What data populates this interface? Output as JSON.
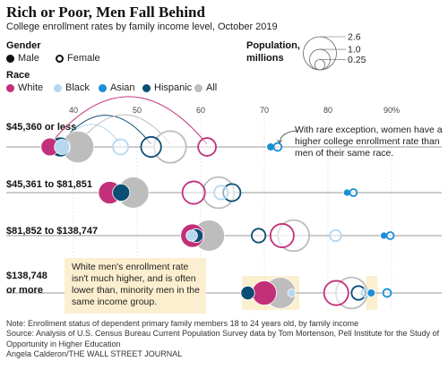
{
  "title": "Rich or Poor, Men Fall Behind",
  "subtitle": "College enrollment rates by family income level, October 2019",
  "legend": {
    "gender_title": "Gender",
    "gender_items": [
      {
        "label": "Male",
        "style": "filled"
      },
      {
        "label": "Female",
        "style": "open"
      }
    ],
    "race_title": "Race",
    "race_items": [
      {
        "label": "White",
        "color": "#c2307a"
      },
      {
        "label": "Black",
        "color": "#b5d7ef"
      },
      {
        "label": "Asian",
        "color": "#1b8fd6"
      },
      {
        "label": "Hispanic",
        "color": "#0c4e73"
      },
      {
        "label": "All",
        "color": "#bdbdbd"
      }
    ],
    "size_title_1": "Population,",
    "size_title_2": "millions",
    "size_items": [
      "2.6",
      "1.0",
      "0.25"
    ]
  },
  "chart_data": {
    "type": "scatter",
    "x_unit": "%",
    "xlim": [
      27,
      93
    ],
    "x_ticks": [
      40,
      50,
      60,
      70,
      80,
      90
    ],
    "x_tick_labels": [
      "40",
      "50",
      "60",
      "70",
      "80",
      "90%"
    ],
    "size_scale_millions": [
      2.6,
      1.0,
      0.25
    ],
    "categories": [
      "$45,360 or less",
      "$45,361 to $81,851",
      "$81,852 to $138,747",
      "$138,748 or more"
    ],
    "category_labels": [
      [
        "$45,360 or less"
      ],
      [
        "$45,361 to $81,851"
      ],
      [
        "$81,852 to $138,747"
      ],
      [
        "$138,748",
        "or more"
      ]
    ],
    "points": [
      {
        "row": 0,
        "race": "White",
        "gender": "Male",
        "x": 36.3,
        "pop": 0.75
      },
      {
        "row": 0,
        "race": "Hispanic",
        "gender": "Male",
        "x": 37.9,
        "pop": 0.95
      },
      {
        "row": 0,
        "race": "Black",
        "gender": "Male",
        "x": 38.2,
        "pop": 0.55
      },
      {
        "row": 0,
        "race": "All",
        "gender": "Male",
        "x": 40.7,
        "pop": 2.4
      },
      {
        "row": 0,
        "race": "Black",
        "gender": "Female",
        "x": 47.4,
        "pop": 0.55
      },
      {
        "row": 0,
        "race": "Hispanic",
        "gender": "Female",
        "x": 52.2,
        "pop": 0.95
      },
      {
        "row": 0,
        "race": "All",
        "gender": "Female",
        "x": 55.2,
        "pop": 2.4
      },
      {
        "row": 0,
        "race": "White",
        "gender": "Female",
        "x": 61.0,
        "pop": 0.75
      },
      {
        "row": 0,
        "race": "Asian",
        "gender": "Male",
        "x": 71.0,
        "pop": 0.15
      },
      {
        "row": 0,
        "race": "Asian",
        "gender": "Female",
        "x": 72.1,
        "pop": 0.15
      },
      {
        "row": 1,
        "race": "White",
        "gender": "Male",
        "x": 45.7,
        "pop": 1.2
      },
      {
        "row": 1,
        "race": "Hispanic",
        "gender": "Male",
        "x": 47.5,
        "pop": 0.7
      },
      {
        "row": 1,
        "race": "All",
        "gender": "Male",
        "x": 49.4,
        "pop": 2.3
      },
      {
        "row": 1,
        "race": "White",
        "gender": "Female",
        "x": 58.9,
        "pop": 1.2
      },
      {
        "row": 1,
        "race": "All",
        "gender": "Female",
        "x": 62.8,
        "pop": 2.3
      },
      {
        "row": 1,
        "race": "Black",
        "gender": "Female",
        "x": 63.2,
        "pop": 0.45
      },
      {
        "row": 1,
        "race": "Hispanic",
        "gender": "Female",
        "x": 64.9,
        "pop": 0.7
      },
      {
        "row": 1,
        "race": "Asian",
        "gender": "Male",
        "x": 83.0,
        "pop": 0.12
      },
      {
        "row": 1,
        "race": "Asian",
        "gender": "Female",
        "x": 84.0,
        "pop": 0.12
      },
      {
        "row": 2,
        "race": "Black",
        "gender": "Male",
        "x": 58.6,
        "pop": 0.3
      },
      {
        "row": 2,
        "race": "White",
        "gender": "Male",
        "x": 58.7,
        "pop": 1.3
      },
      {
        "row": 2,
        "race": "Hispanic",
        "gender": "Male",
        "x": 59.3,
        "pop": 0.45
      },
      {
        "row": 2,
        "race": "All",
        "gender": "Male",
        "x": 61.3,
        "pop": 2.3
      },
      {
        "row": 2,
        "race": "Hispanic",
        "gender": "Female",
        "x": 69.1,
        "pop": 0.45
      },
      {
        "row": 2,
        "race": "White",
        "gender": "Female",
        "x": 72.8,
        "pop": 1.3
      },
      {
        "row": 2,
        "race": "All",
        "gender": "Female",
        "x": 74.6,
        "pop": 2.3
      },
      {
        "row": 2,
        "race": "Black",
        "gender": "Female",
        "x": 81.2,
        "pop": 0.3
      },
      {
        "row": 2,
        "race": "Asian",
        "gender": "Male",
        "x": 88.8,
        "pop": 0.12
      },
      {
        "row": 2,
        "race": "Asian",
        "gender": "Female",
        "x": 89.8,
        "pop": 0.12
      },
      {
        "row": 3,
        "race": "Hispanic",
        "gender": "Male",
        "x": 67.4,
        "pop": 0.45
      },
      {
        "row": 3,
        "race": "White",
        "gender": "Male",
        "x": 70.0,
        "pop": 1.4
      },
      {
        "row": 3,
        "race": "All",
        "gender": "Male",
        "x": 72.5,
        "pop": 2.3
      },
      {
        "row": 3,
        "race": "Black",
        "gender": "Male",
        "x": 74.3,
        "pop": 0.15
      },
      {
        "row": 3,
        "race": "White",
        "gender": "Female",
        "x": 81.3,
        "pop": 1.4
      },
      {
        "row": 3,
        "race": "All",
        "gender": "Female",
        "x": 83.7,
        "pop": 2.3
      },
      {
        "row": 3,
        "race": "Hispanic",
        "gender": "Female",
        "x": 84.8,
        "pop": 0.45
      },
      {
        "row": 3,
        "race": "Black",
        "gender": "Female",
        "x": 85.9,
        "pop": 0.15
      },
      {
        "row": 3,
        "race": "Asian",
        "gender": "Male",
        "x": 86.8,
        "pop": 0.15
      },
      {
        "row": 3,
        "race": "Asian",
        "gender": "Female",
        "x": 89.3,
        "pop": 0.15
      }
    ],
    "annotations": [
      {
        "text": "With rare exception, women have a higher college enrollment rate than men of their same race.",
        "row": 0
      },
      {
        "text": "White men's enrollment rate isn't much higher, and is often lower than, minority men in the same income group.",
        "row": 3
      }
    ],
    "highlights": [
      {
        "row": 3,
        "x_range": [
          66.5,
          75.5
        ]
      },
      {
        "row": 3,
        "x_range": [
          86.0,
          87.8
        ]
      }
    ]
  },
  "notes": [
    "Note: Enrollment status of dependent primary family members 18 to 24 years old, by family income",
    "Source: Analysis of U.S. Census Bureau Current Population Survey data by Tom Mortenson, Pell Institute for the Study of",
    "Opportunity in Higher Education",
    "Angela Calderon/THE WALL STREET JOURNAL"
  ]
}
